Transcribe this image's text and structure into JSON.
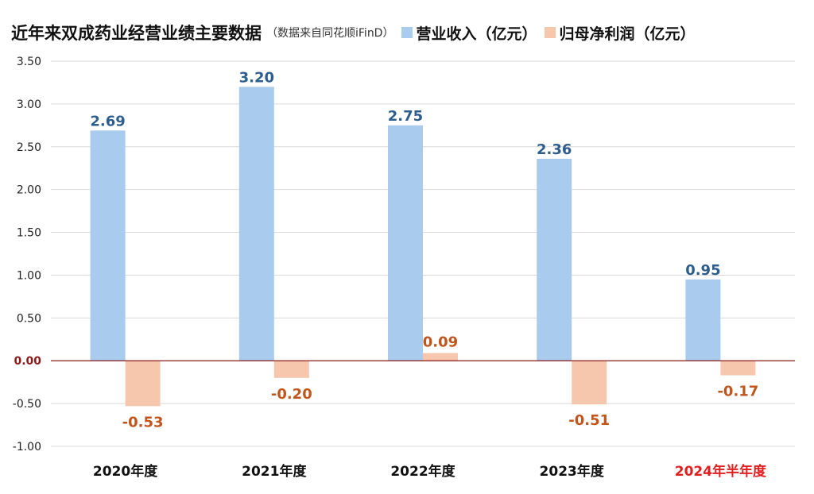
{
  "title": "近年来双成药业经营业绩主要数据",
  "subtitle": "（数据来自同花顺iFinD）",
  "colors": {
    "revenue": "#a9cbee",
    "profit": "#f6c6ad",
    "revenue_label": "#2e5e8e",
    "profit_label": "#c0561d",
    "zero_line": "#8b1a1a",
    "highlight_category": "#e02020",
    "grid": "#d9d9d9"
  },
  "chart_data": {
    "type": "bar",
    "categories": [
      "2020年度",
      "2021年度",
      "2022年度",
      "2023年度",
      "2024年半年度"
    ],
    "highlight_category_index": 4,
    "series": [
      {
        "name": "营业收入（亿元）",
        "values": [
          2.69,
          3.2,
          2.75,
          2.36,
          0.95
        ]
      },
      {
        "name": "归母净利润（亿元）",
        "values": [
          -0.53,
          -0.2,
          0.09,
          -0.51,
          -0.17
        ]
      }
    ],
    "data_labels": {
      "revenue": [
        "2.69",
        "3.20",
        "2.75",
        "2.36",
        "0.95"
      ],
      "profit": [
        "-0.53",
        "-0.20",
        "0.09",
        "-0.51",
        "-0.17"
      ]
    },
    "ylim": [
      -1.0,
      3.5
    ],
    "yticks": [
      "-1.00",
      "-0.50",
      "0.00",
      "0.50",
      "1.00",
      "1.50",
      "2.00",
      "2.50",
      "3.00",
      "3.50"
    ],
    "grid": true,
    "legend_position": "top-right"
  }
}
